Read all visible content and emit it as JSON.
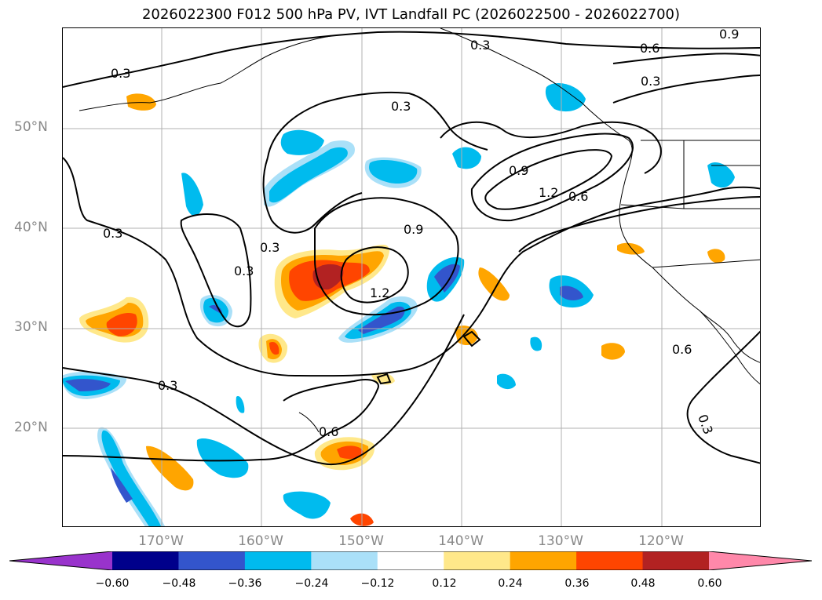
{
  "title": "2026022300 F012 500 hPa PV, IVT Landfall PC (2026022500 - 2026022700)",
  "lat_labels": [
    "50°N",
    "40°N",
    "30°N",
    "20°N"
  ],
  "lon_labels": [
    "170°W",
    "160°W",
    "150°W",
    "140°W",
    "130°W",
    "120°W"
  ],
  "contour_labels": [
    "0.3",
    "0.3",
    "0.3",
    "0.3",
    "0.3",
    "0.3",
    "0.3",
    "0.3",
    "0.6",
    "0.6",
    "0.6",
    "0.6",
    "0.9",
    "0.9",
    "0.9",
    "1.2",
    "1.2"
  ],
  "colorbar": {
    "ticks": [
      "−0.60",
      "−0.48",
      "−0.36",
      "−0.24",
      "−0.12",
      "0.12",
      "0.24",
      "0.36",
      "0.48",
      "0.60"
    ],
    "colors": [
      "#9933cc",
      "#00008b",
      "#3355cc",
      "#00bbee",
      "#aae0f8",
      "#ffffff",
      "#ffe88a",
      "#ffa500",
      "#ff4500",
      "#b22222",
      "#ff88aa"
    ]
  }
}
